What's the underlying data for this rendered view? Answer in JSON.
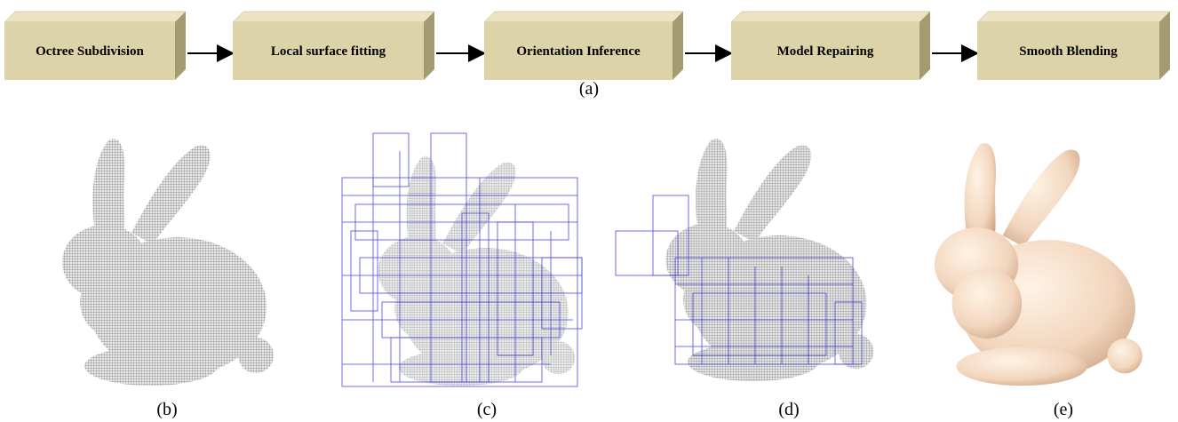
{
  "pipeline": {
    "steps": [
      "Octree Subdivision",
      "Local surface fitting",
      "Orientation Inference",
      "Model Repairing",
      "Smooth Blending"
    ],
    "caption": "(a)"
  },
  "panels": [
    {
      "label": "(b)"
    },
    {
      "label": "(c)"
    },
    {
      "label": "(d)"
    },
    {
      "label": "(e)"
    }
  ]
}
